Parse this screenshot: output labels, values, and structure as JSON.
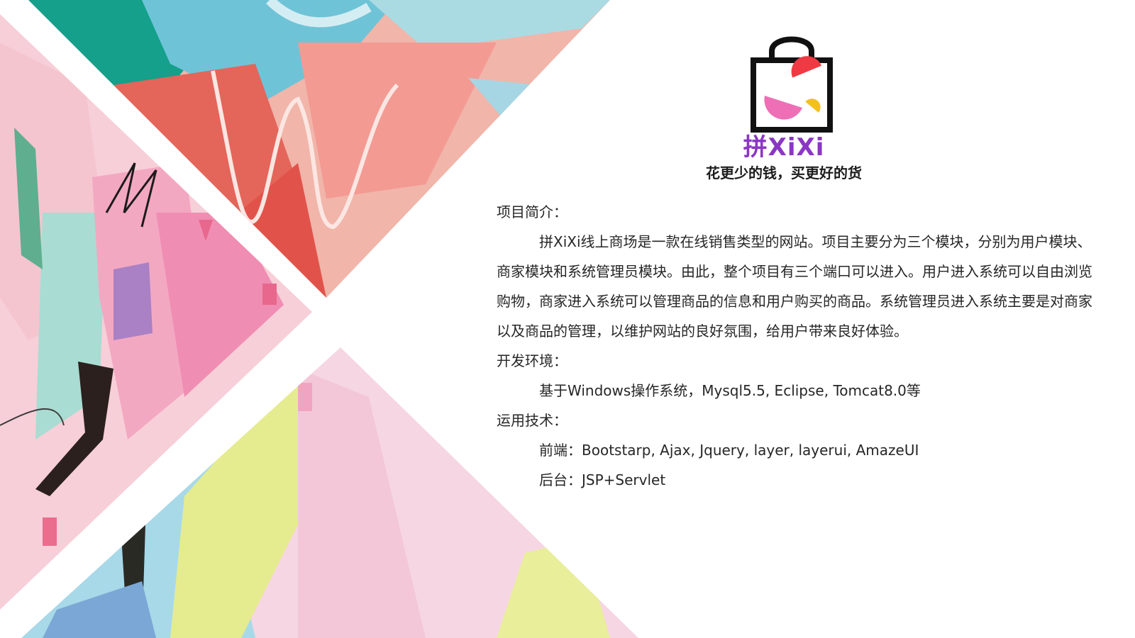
{
  "logo": {
    "brand": "拼XiXi",
    "slogan": "花更少的钱，买更好的货"
  },
  "content": {
    "intro_heading": "项目简介：",
    "intro_text": "拼XiXi线上商场是一款在线销售类型的网站。项目主要分为三个模块，分别为用户模块、商家模块和系统管理员模块。由此，整个项目有三个端口可以进入。用户进入系统可以自由浏览购物，商家进入系统可以管理商品的信息和用户购买的商品。系统管理员进入系统主要是对商家以及商品的管理，以维护网站的良好氛围，给用户带来良好体验。",
    "env_heading": "开发环境：",
    "env_text": "基于Windows操作系统，Mysql5.5, Eclipse, Tomcat8.0等",
    "tech_heading": "运用技术：",
    "frontend_text": "前端：Bootstarp, Ajax, Jquery, layer, layerui, AmazeUI",
    "backend_text": "后台：JSP+Servlet"
  },
  "colors": {
    "brand_purple": "#8b36c4",
    "text": "#262626"
  }
}
